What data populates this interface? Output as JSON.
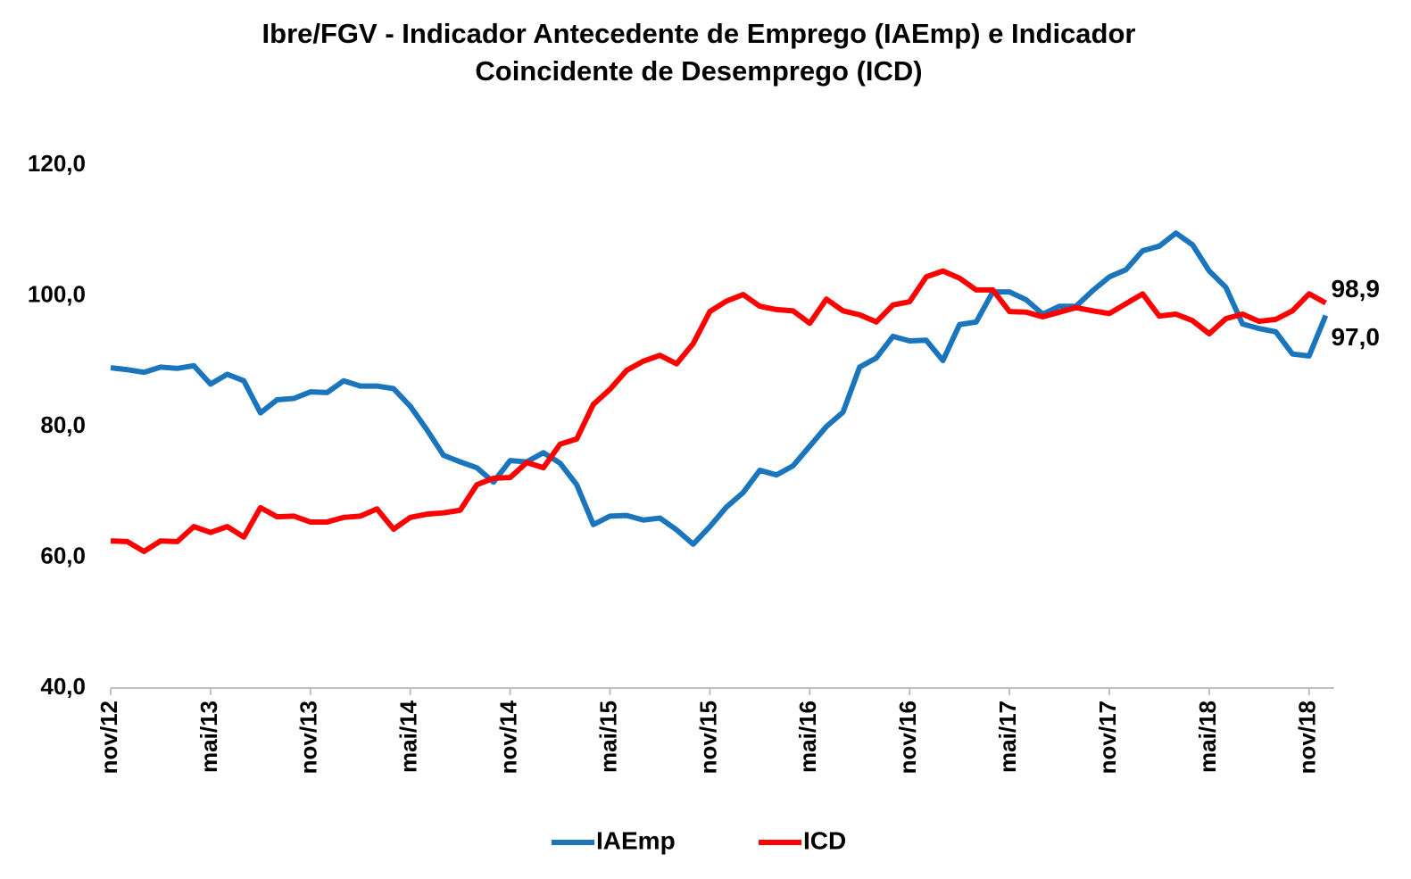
{
  "chart_data": {
    "type": "line",
    "title": [
      "Ibre/FGV - Indicador Antecedente de Emprego (IAEmp) e Indicador",
      "Coincidente de Desemprego (ICD)"
    ],
    "categories": [
      "nov/12",
      null,
      null,
      null,
      null,
      null,
      "mai/13",
      null,
      null,
      null,
      null,
      null,
      "nov/13",
      null,
      null,
      null,
      null,
      null,
      "mai/14",
      null,
      null,
      null,
      null,
      null,
      "nov/14",
      null,
      null,
      null,
      null,
      null,
      "mai/15",
      null,
      null,
      null,
      null,
      null,
      "nov/15",
      null,
      null,
      null,
      null,
      null,
      "mai/16",
      null,
      null,
      null,
      null,
      null,
      "nov/16",
      null,
      null,
      null,
      null,
      null,
      "mai/17",
      null,
      null,
      null,
      null,
      null,
      "nov/17",
      null,
      null,
      null,
      null,
      null,
      "mai/18",
      null,
      null,
      null,
      null,
      null,
      "nov/18",
      null
    ],
    "series": [
      {
        "name": "IAEmp",
        "color": "#1a75bc",
        "label_color": "#1a75bc",
        "values": [
          89.0,
          88.7,
          88.3,
          89.1,
          88.9,
          89.3,
          86.5,
          88.0,
          87.0,
          82.1,
          84.1,
          84.3,
          85.3,
          85.2,
          87.0,
          86.2,
          86.2,
          85.8,
          83.1,
          79.5,
          75.6,
          74.6,
          73.7,
          71.5,
          74.8,
          74.6,
          76.0,
          74.4,
          71.1,
          65.0,
          66.3,
          66.4,
          65.7,
          66.0,
          64.2,
          62.0,
          64.7,
          67.7,
          69.9,
          73.3,
          72.6,
          74.0,
          77.0,
          80.0,
          82.2,
          89.1,
          90.5,
          93.8,
          93.1,
          93.2,
          90.1,
          95.6,
          96.0,
          100.6,
          100.6,
          99.4,
          97.2,
          98.4,
          98.4,
          100.8,
          102.9,
          104.0,
          106.9,
          107.6,
          109.6,
          107.8,
          103.8,
          101.3,
          95.7,
          95.0,
          94.5,
          91.1,
          90.8,
          97.0
        ],
        "value_labels": [
          null,
          null,
          null,
          null,
          null,
          null,
          null,
          null,
          null,
          null,
          null,
          null,
          null,
          null,
          null,
          null,
          null,
          null,
          null,
          null,
          null,
          null,
          null,
          null,
          null,
          null,
          null,
          null,
          null,
          null,
          null,
          null,
          null,
          null,
          null,
          null,
          null,
          null,
          null,
          null,
          null,
          null,
          null,
          null,
          null,
          null,
          null,
          null,
          null,
          null,
          null,
          null,
          null,
          null,
          null,
          null,
          null,
          null,
          null,
          null,
          null,
          null,
          null,
          null,
          null,
          null,
          null,
          null,
          null,
          null,
          null,
          null,
          null,
          "97,0"
        ]
      },
      {
        "name": "ICD",
        "color": "#ff0000",
        "label_color": "#c00000",
        "values": [
          62.5,
          62.4,
          60.9,
          62.5,
          62.4,
          64.7,
          63.8,
          64.7,
          63.1,
          67.6,
          66.2,
          66.3,
          65.4,
          65.4,
          66.1,
          66.3,
          67.4,
          64.3,
          66.1,
          66.6,
          66.8,
          67.2,
          71.1,
          72.1,
          72.2,
          74.5,
          73.7,
          77.3,
          78.1,
          83.4,
          85.7,
          88.6,
          90.0,
          90.9,
          89.6,
          92.7,
          97.6,
          99.2,
          100.2,
          98.4,
          97.9,
          97.7,
          95.8,
          99.5,
          97.7,
          97.1,
          96.0,
          98.6,
          99.1,
          102.9,
          103.8,
          102.7,
          100.9,
          100.9,
          97.6,
          97.5,
          96.8,
          97.5,
          98.2,
          97.7,
          97.3,
          98.8,
          100.3,
          96.9,
          97.2,
          96.2,
          94.2,
          96.5,
          97.2,
          96.1,
          96.4,
          97.7,
          100.3,
          98.9
        ],
        "value_labels": [
          null,
          null,
          null,
          null,
          null,
          null,
          null,
          null,
          null,
          null,
          null,
          null,
          null,
          null,
          null,
          null,
          null,
          null,
          null,
          null,
          null,
          null,
          null,
          null,
          null,
          null,
          null,
          null,
          null,
          null,
          null,
          null,
          null,
          null,
          null,
          null,
          null,
          null,
          null,
          null,
          null,
          null,
          null,
          null,
          null,
          null,
          null,
          null,
          null,
          null,
          null,
          null,
          null,
          null,
          null,
          null,
          null,
          null,
          null,
          null,
          null,
          null,
          null,
          null,
          null,
          null,
          null,
          null,
          null,
          null,
          null,
          null,
          null,
          "98,9"
        ]
      }
    ],
    "ylim": [
      40,
      120
    ],
    "yticks": [
      {
        "value": 40,
        "label": "40,0"
      },
      {
        "value": 60,
        "label": "60,0"
      },
      {
        "value": 80,
        "label": "80,0"
      },
      {
        "value": 100,
        "label": "100,0"
      },
      {
        "value": 120,
        "label": "120,0"
      }
    ],
    "grid": false,
    "legend": "bottom"
  }
}
